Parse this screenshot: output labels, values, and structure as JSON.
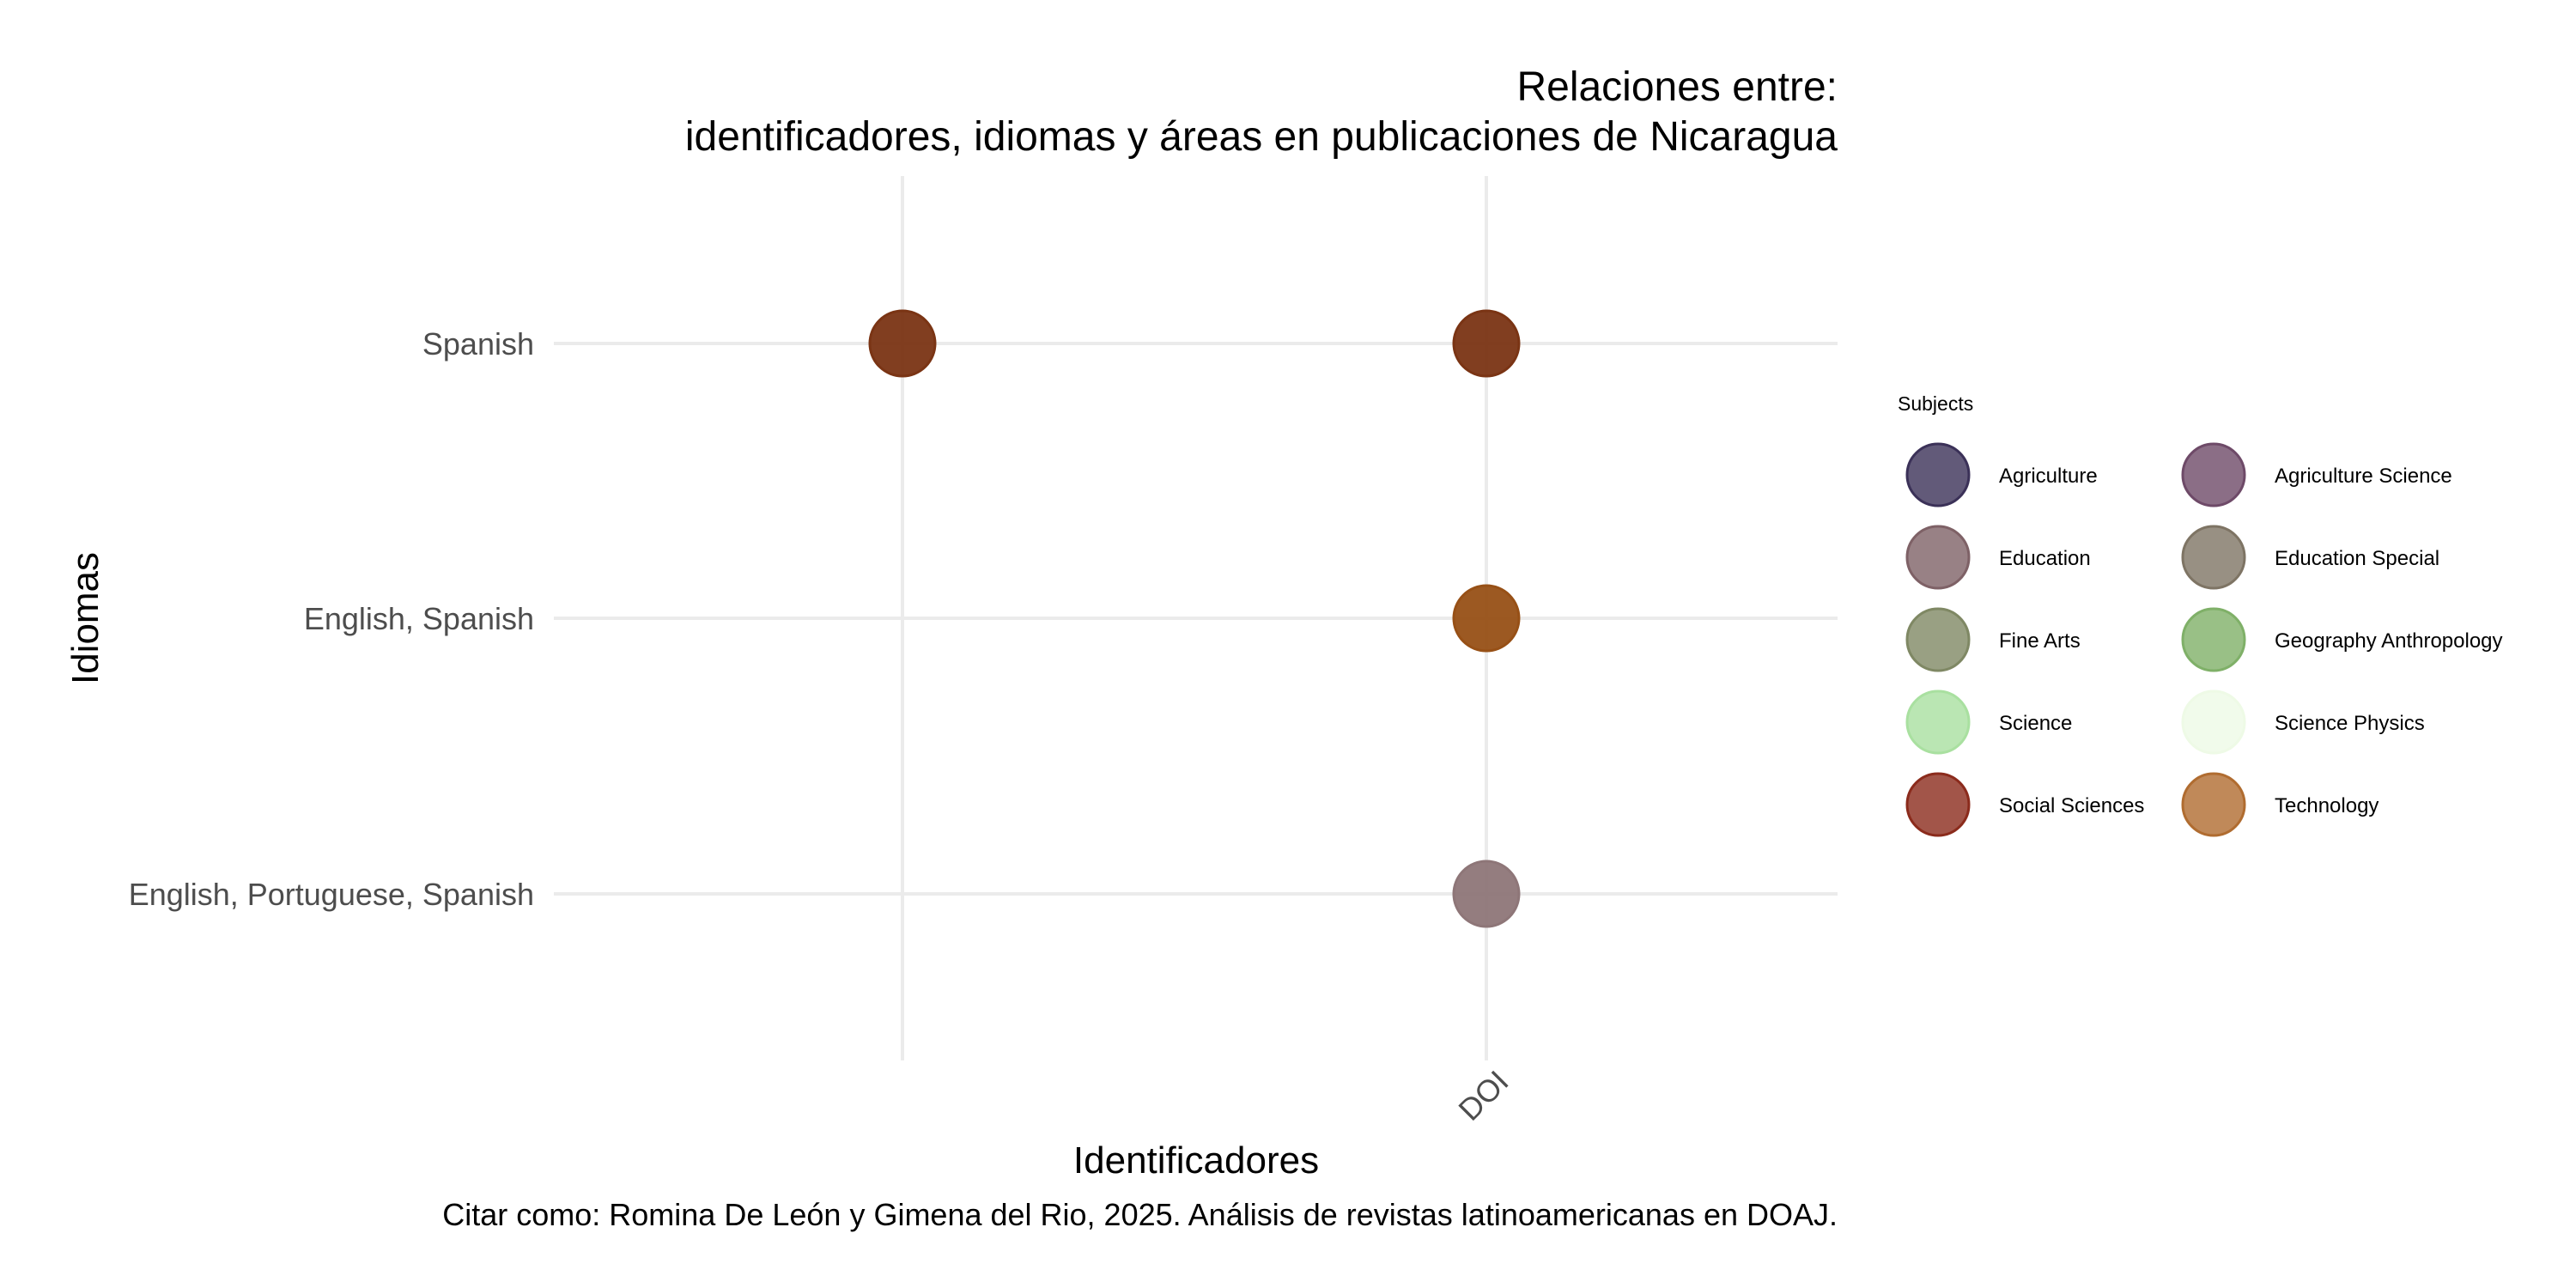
{
  "chart_data": {
    "type": "scatter",
    "title_line1": "Relaciones entre:",
    "title_line2": "identificadores, idiomas y áreas en publicaciones de Nicaragua",
    "xlabel": "Identificadores",
    "ylabel": "Idiomas",
    "caption": "Citar como: Romina De León y Gimena del Rio, 2025. Análisis de revistas latinoamericanas en DOAJ.",
    "x_categories": [
      "",
      "DOI"
    ],
    "y_categories": [
      "Spanish",
      "English, Spanish",
      "English, Portuguese, Spanish"
    ],
    "legend_title": "Subjects",
    "legend_placement": "right",
    "grid": true,
    "subjects": [
      {
        "name": "Agriculture",
        "color": "#3b3158"
      },
      {
        "name": "Agriculture Science",
        "color": "#6e4a68"
      },
      {
        "name": "Education",
        "color": "#7e6166"
      },
      {
        "name": "Education Special",
        "color": "#7e7464"
      },
      {
        "name": "Fine Arts",
        "color": "#7f8864"
      },
      {
        "name": "Geography Anthropology",
        "color": "#7fb068"
      },
      {
        "name": "Science",
        "color": "#a9e0a0"
      },
      {
        "name": "Science Physics",
        "color": "#eefae6"
      },
      {
        "name": "Social Sciences",
        "color": "#8b2b1c"
      },
      {
        "name": "Technology",
        "color": "#b06c30"
      }
    ],
    "points": [
      {
        "x": "",
        "y": "Spanish",
        "color": "#7a3414"
      },
      {
        "x": "DOI",
        "y": "Spanish",
        "color": "#7a3414"
      },
      {
        "x": "DOI",
        "y": "English, Spanish",
        "color": "#975016"
      },
      {
        "x": "DOI",
        "y": "English, Portuguese, Spanish",
        "color": "#8e7678"
      }
    ]
  }
}
